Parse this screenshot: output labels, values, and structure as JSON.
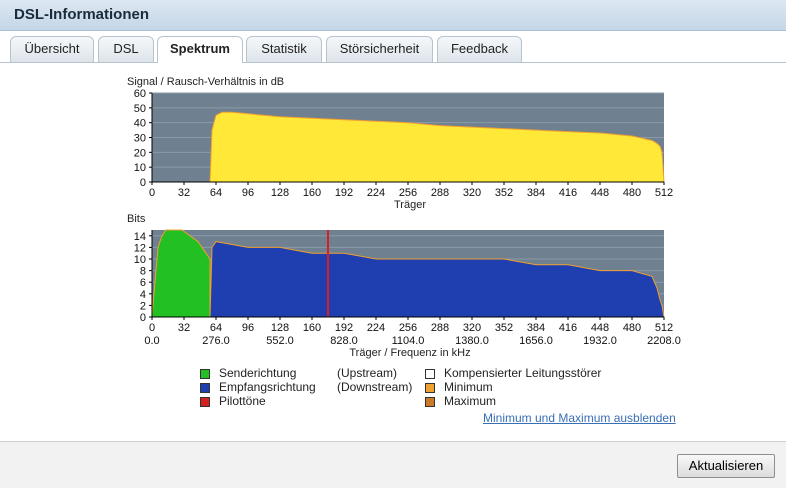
{
  "window": {
    "title": "DSL-Informationen"
  },
  "tabs": [
    {
      "label": "Übersicht",
      "active": false
    },
    {
      "label": "DSL",
      "active": false
    },
    {
      "label": "Spektrum",
      "active": true
    },
    {
      "label": "Statistik",
      "active": false
    },
    {
      "label": "Störsicherheit",
      "active": false
    },
    {
      "label": "Feedback",
      "active": false
    }
  ],
  "chart_data": [
    {
      "type": "area",
      "ylabel": "Signal / Rausch-Verhältnis in dB",
      "xlabel": "Träger",
      "xlim": [
        0,
        512
      ],
      "ylim": [
        0,
        60
      ],
      "x_ticks": [
        0,
        32,
        64,
        96,
        128,
        160,
        192,
        224,
        256,
        288,
        320,
        352,
        384,
        416,
        448,
        480,
        512
      ],
      "y_ticks": [
        0,
        10,
        20,
        30,
        40,
        50,
        60
      ],
      "series": [
        {
          "fill": "#ffe838",
          "x": [
            0,
            58,
            60,
            64,
            70,
            80,
            96,
            128,
            160,
            192,
            224,
            256,
            288,
            320,
            352,
            384,
            416,
            448,
            480,
            500,
            505,
            508,
            510,
            512
          ],
          "values": [
            0,
            0,
            35,
            45,
            47,
            47,
            46,
            44,
            43,
            42,
            41,
            40,
            38,
            37,
            36,
            35,
            34,
            33,
            31,
            28,
            26,
            24,
            20,
            0
          ]
        }
      ]
    },
    {
      "type": "area",
      "ylabel": "Bits",
      "xlabel": "Träger / Frequenz in kHz",
      "xlim": [
        0,
        512
      ],
      "ylim": [
        0,
        15
      ],
      "x_ticks": [
        0,
        32,
        64,
        96,
        128,
        160,
        192,
        224,
        256,
        288,
        320,
        352,
        384,
        416,
        448,
        480,
        512
      ],
      "freq_ticks": [
        "0.0",
        "276.0",
        "552.0",
        "828.0",
        "1104.0",
        "1380.0",
        "1656.0",
        "1932.0",
        "2208.0"
      ],
      "y_ticks": [
        0,
        2,
        4,
        6,
        8,
        10,
        12,
        14
      ],
      "series": [
        {
          "name": "Senderichtung",
          "fill": "#22c022",
          "x": [
            0,
            6,
            10,
            14,
            30,
            38,
            46,
            54,
            58,
            58
          ],
          "values": [
            0,
            12,
            14,
            15,
            15,
            14,
            13,
            11,
            10,
            0
          ]
        },
        {
          "name": "Empfangsrichtung",
          "fill": "#1f3fb0",
          "x": [
            58,
            60,
            64,
            96,
            128,
            160,
            192,
            224,
            256,
            288,
            320,
            352,
            384,
            416,
            448,
            480,
            500,
            505,
            508,
            510,
            512
          ],
          "values": [
            0,
            12,
            13,
            12,
            12,
            11,
            11,
            10,
            10,
            10,
            10,
            10,
            9,
            9,
            8,
            8,
            7,
            5,
            3,
            2,
            0
          ]
        }
      ],
      "pilot_tone_x": 176
    }
  ],
  "legend": {
    "up_label": "Senderichtung",
    "up_note": "(Upstream)",
    "down_label": "Empfangsrichtung",
    "down_note": "(Downstream)",
    "pilot_label": "Pilottöne",
    "noise_label": "Kompensierter Leitungsstörer",
    "min_label": "Minimum",
    "max_label": "Maximum",
    "colors": {
      "up": "#22c022",
      "down": "#1f3fb0",
      "pilot": "#d42020",
      "noise": "#ffffff",
      "min": "#f0a030",
      "max": "#c87a28"
    }
  },
  "toggle_link": "Minimum und Maximum ausblenden",
  "refresh_button": "Aktualisieren"
}
